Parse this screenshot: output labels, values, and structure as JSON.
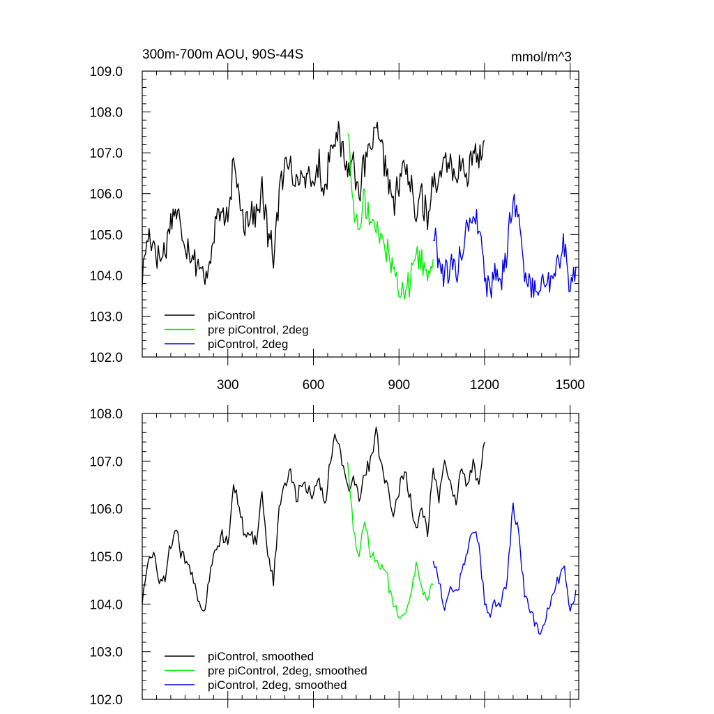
{
  "chart_data": [
    {
      "type": "line",
      "title": "300m-700m AOU, 90S-44S",
      "units": "mmol/m^3",
      "xlim": [
        0,
        1530
      ],
      "ylim": [
        102.0,
        109.0
      ],
      "x_ticks": [
        300,
        600,
        900,
        1200,
        1500
      ],
      "y_ticks": [
        "102.0",
        "103.0",
        "104.0",
        "105.0",
        "106.0",
        "107.0",
        "108.0",
        "109.0"
      ],
      "legend": [
        "piControl",
        "pre piControl, 2deg",
        "piControl, 2deg"
      ],
      "series": [
        {
          "name": "piControl",
          "color": "#000000",
          "x": [
            0,
            20,
            40,
            60,
            80,
            100,
            120,
            140,
            160,
            180,
            200,
            220,
            240,
            260,
            280,
            300,
            320,
            340,
            360,
            380,
            400,
            420,
            440,
            460,
            480,
            500,
            520,
            540,
            560,
            580,
            600,
            620,
            640,
            660,
            680,
            700,
            720,
            740,
            760,
            780,
            800,
            820,
            840,
            860,
            880,
            900,
            920,
            940,
            960,
            980,
            1000,
            1020,
            1040,
            1060,
            1080,
            1100,
            1120,
            1140,
            1160,
            1180,
            1200
          ],
          "values": [
            104.0,
            105.0,
            104.8,
            104.4,
            104.6,
            105.4,
            105.6,
            105.0,
            104.7,
            104.5,
            104.2,
            103.8,
            104.6,
            105.4,
            105.6,
            105.2,
            106.7,
            106.0,
            105.3,
            105.6,
            105.4,
            106.1,
            105.0,
            104.5,
            106.0,
            106.6,
            106.9,
            106.2,
            106.5,
            106.3,
            106.3,
            106.7,
            106.0,
            107.2,
            107.5,
            107.1,
            106.6,
            106.8,
            106.1,
            106.7,
            107.1,
            107.5,
            107.0,
            106.5,
            105.7,
            106.2,
            106.8,
            106.2,
            105.4,
            106.0,
            105.3,
            106.5,
            106.2,
            107.0,
            106.6,
            106.2,
            106.8,
            106.4,
            107.0,
            106.8,
            107.3
          ]
        },
        {
          "name": "pre piControl, 2deg",
          "color": "#00ee00",
          "x": [
            720,
            740,
            760,
            780,
            800,
            820,
            840,
            860,
            880,
            900,
            920,
            940,
            960,
            980,
            1000,
            1020
          ],
          "values": [
            107.6,
            105.7,
            105.0,
            105.9,
            105.3,
            105.1,
            104.9,
            104.5,
            104.2,
            103.8,
            103.6,
            103.9,
            104.6,
            104.3,
            104.1,
            104.4
          ]
        },
        {
          "name": "piControl, 2deg",
          "color": "#0000ee",
          "x": [
            1020,
            1040,
            1060,
            1080,
            1100,
            1120,
            1140,
            1160,
            1180,
            1200,
            1220,
            1240,
            1260,
            1280,
            1300,
            1320,
            1340,
            1360,
            1380,
            1400,
            1420,
            1440,
            1460,
            1480,
            1500,
            1520
          ],
          "values": [
            105.1,
            104.4,
            104.0,
            104.3,
            104.1,
            104.6,
            105.2,
            105.5,
            105.3,
            104.0,
            103.7,
            104.2,
            103.9,
            104.7,
            106.0,
            105.3,
            104.1,
            103.7,
            103.6,
            103.7,
            103.9,
            104.1,
            104.3,
            104.8,
            103.7,
            104.2
          ]
        }
      ]
    },
    {
      "type": "line",
      "title": "",
      "units": "",
      "xlim": [
        0,
        1530
      ],
      "ylim": [
        102.0,
        108.0
      ],
      "x_ticks": [
        300,
        600,
        900,
        1200,
        1500
      ],
      "y_ticks": [
        "102.0",
        "103.0",
        "104.0",
        "105.0",
        "106.0",
        "107.0",
        "108.0"
      ],
      "legend": [
        "piControl, smoothed",
        "pre piControl, 2deg, smoothed",
        "piControl, 2deg, smoothed"
      ],
      "series": [
        {
          "name": "piControl, smoothed",
          "color": "#000000",
          "x": [
            0,
            20,
            40,
            60,
            80,
            100,
            120,
            140,
            160,
            180,
            200,
            220,
            240,
            260,
            280,
            300,
            320,
            340,
            360,
            380,
            400,
            420,
            440,
            460,
            480,
            500,
            520,
            540,
            560,
            580,
            600,
            620,
            640,
            660,
            680,
            700,
            720,
            740,
            760,
            780,
            800,
            820,
            840,
            860,
            880,
            900,
            920,
            940,
            960,
            980,
            1000,
            1020,
            1040,
            1060,
            1080,
            1100,
            1120,
            1140,
            1160,
            1180,
            1200
          ],
          "values": [
            104.1,
            104.9,
            105.0,
            104.5,
            104.5,
            105.3,
            105.5,
            105.0,
            104.8,
            104.5,
            104.0,
            103.9,
            104.8,
            105.2,
            105.5,
            105.2,
            106.6,
            106.0,
            105.4,
            105.5,
            105.3,
            106.4,
            105.0,
            104.5,
            106.0,
            106.5,
            106.8,
            106.2,
            106.5,
            106.4,
            106.3,
            106.7,
            106.0,
            107.1,
            107.6,
            107.0,
            106.4,
            106.7,
            106.2,
            106.7,
            107.0,
            107.6,
            106.9,
            106.4,
            105.9,
            106.4,
            106.8,
            106.2,
            105.6,
            106.0,
            105.5,
            106.8,
            106.2,
            107.0,
            106.5,
            106.1,
            106.9,
            106.5,
            107.0,
            106.5,
            107.4
          ]
        },
        {
          "name": "pre piControl, 2deg, smoothed",
          "color": "#00ee00",
          "x": [
            720,
            740,
            760,
            780,
            800,
            820,
            840,
            860,
            880,
            900,
            920,
            940,
            960,
            980,
            1000,
            1020
          ],
          "values": [
            107.0,
            105.6,
            105.0,
            105.8,
            105.1,
            104.9,
            104.8,
            104.5,
            104.0,
            103.7,
            103.8,
            104.2,
            104.8,
            104.3,
            104.1,
            104.4
          ]
        },
        {
          "name": "piControl, 2deg, smoothed",
          "color": "#0000ee",
          "x": [
            1020,
            1040,
            1060,
            1080,
            1100,
            1120,
            1140,
            1160,
            1180,
            1200,
            1220,
            1240,
            1260,
            1280,
            1300,
            1320,
            1340,
            1360,
            1380,
            1400,
            1420,
            1440,
            1460,
            1480,
            1500,
            1520
          ],
          "values": [
            105.0,
            104.4,
            103.9,
            104.3,
            104.2,
            104.6,
            105.2,
            105.6,
            105.3,
            104.0,
            103.8,
            104.1,
            104.0,
            104.6,
            106.1,
            105.4,
            104.2,
            103.8,
            103.6,
            103.3,
            103.9,
            104.2,
            104.5,
            104.8,
            103.8,
            104.3
          ]
        }
      ]
    }
  ]
}
